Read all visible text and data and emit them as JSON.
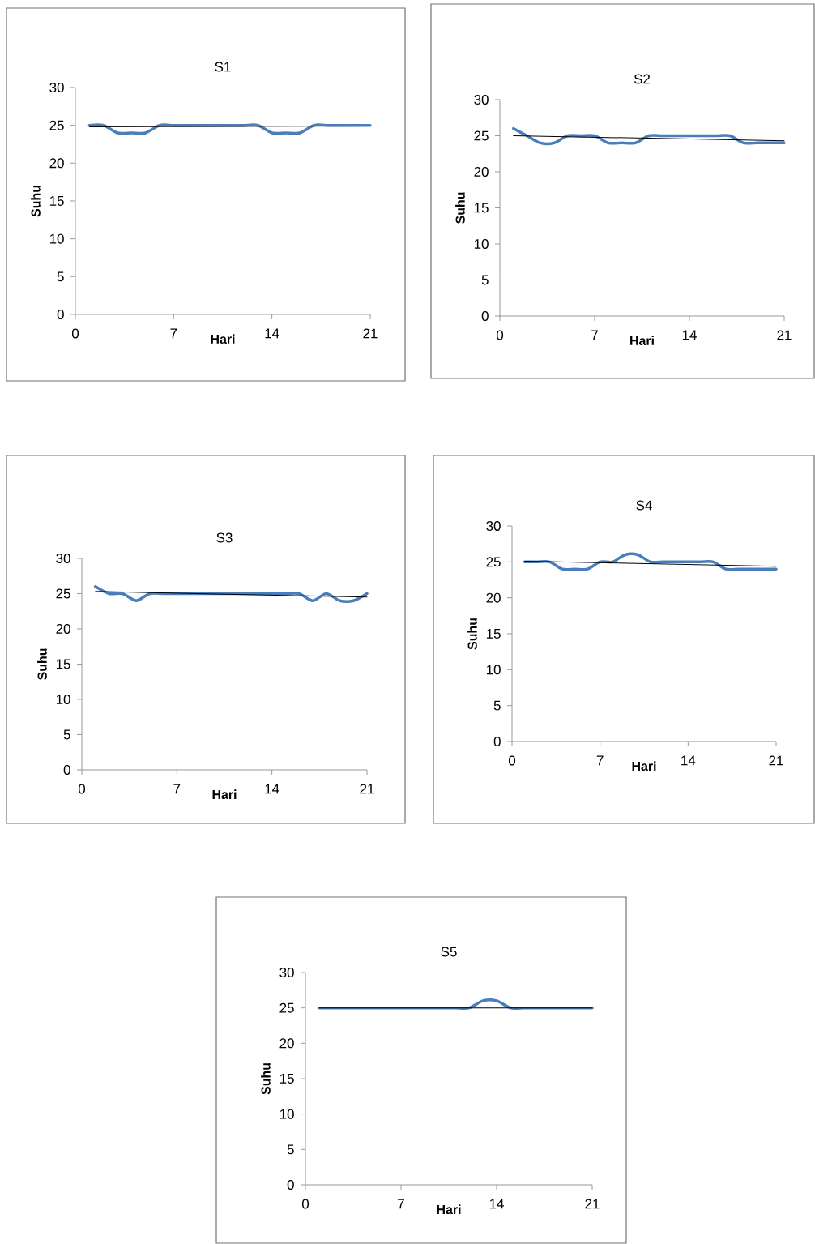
{
  "chart_data": [
    {
      "type": "line",
      "title": "S1",
      "xlabel": "Hari",
      "ylabel": "Suhu",
      "xlim": [
        0,
        21
      ],
      "xticks": [
        0,
        7,
        14,
        21
      ],
      "ylim": [
        0,
        30
      ],
      "yticks": [
        0,
        5,
        10,
        15,
        20,
        25,
        30
      ],
      "series": [
        {
          "color": "#4a7ebb",
          "x": [
            1,
            2,
            3,
            4,
            5,
            6,
            7,
            8,
            9,
            10,
            11,
            12,
            13,
            14,
            15,
            16,
            17,
            18,
            19,
            20,
            21
          ],
          "values": [
            25,
            25,
            24,
            24,
            24,
            25,
            25,
            25,
            25,
            25,
            25,
            25,
            25,
            24,
            24,
            24,
            25,
            25,
            25,
            25,
            25
          ]
        },
        {
          "color": "#000000",
          "x": [
            1,
            21
          ],
          "values": [
            24.8,
            24.9
          ]
        }
      ]
    },
    {
      "type": "line",
      "title": "S2",
      "xlabel": "Hari",
      "ylabel": "Suhu",
      "xlim": [
        0,
        21
      ],
      "xticks": [
        0,
        7,
        14,
        21
      ],
      "ylim": [
        0,
        30
      ],
      "yticks": [
        0,
        5,
        10,
        15,
        20,
        25,
        30
      ],
      "series": [
        {
          "color": "#4a7ebb",
          "x": [
            1,
            2,
            3,
            4,
            5,
            6,
            7,
            8,
            9,
            10,
            11,
            12,
            13,
            14,
            15,
            16,
            17,
            18,
            19,
            20,
            21
          ],
          "values": [
            26,
            25,
            24,
            24,
            25,
            25,
            25,
            24,
            24,
            24,
            25,
            25,
            25,
            25,
            25,
            25,
            25,
            24,
            24,
            24,
            24
          ]
        },
        {
          "color": "#000000",
          "x": [
            1,
            21
          ],
          "values": [
            25.0,
            24.3
          ]
        }
      ]
    },
    {
      "type": "line",
      "title": "S3",
      "xlabel": "Hari",
      "ylabel": "Suhu",
      "xlim": [
        0,
        21
      ],
      "xticks": [
        0,
        7,
        14,
        21
      ],
      "ylim": [
        0,
        30
      ],
      "yticks": [
        0,
        5,
        10,
        15,
        20,
        25,
        30
      ],
      "series": [
        {
          "color": "#4a7ebb",
          "x": [
            1,
            2,
            3,
            4,
            5,
            6,
            7,
            8,
            9,
            10,
            11,
            12,
            13,
            14,
            15,
            16,
            17,
            18,
            19,
            20,
            21
          ],
          "values": [
            26,
            25,
            25,
            24,
            25,
            25,
            25,
            25,
            25,
            25,
            25,
            25,
            25,
            25,
            25,
            25,
            24,
            25,
            24,
            24,
            25
          ]
        },
        {
          "color": "#000000",
          "x": [
            1,
            21
          ],
          "values": [
            25.3,
            24.5
          ]
        }
      ]
    },
    {
      "type": "line",
      "title": "S4",
      "xlabel": "Hari",
      "ylabel": "Suhu",
      "xlim": [
        0,
        21
      ],
      "xticks": [
        0,
        7,
        14,
        21
      ],
      "ylim": [
        0,
        30
      ],
      "yticks": [
        0,
        5,
        10,
        15,
        20,
        25,
        30
      ],
      "series": [
        {
          "color": "#4a7ebb",
          "x": [
            1,
            2,
            3,
            4,
            5,
            6,
            7,
            8,
            9,
            10,
            11,
            12,
            13,
            14,
            15,
            16,
            17,
            18,
            19,
            20,
            21
          ],
          "values": [
            25,
            25,
            25,
            24,
            24,
            24,
            25,
            25,
            26,
            26,
            25,
            25,
            25,
            25,
            25,
            25,
            24,
            24,
            24,
            24,
            24
          ]
        },
        {
          "color": "#000000",
          "x": [
            1,
            21
          ],
          "values": [
            25.1,
            24.4
          ]
        }
      ]
    },
    {
      "type": "line",
      "title": "S5",
      "xlabel": "Hari",
      "ylabel": "Suhu",
      "xlim": [
        0,
        21
      ],
      "xticks": [
        0,
        7,
        14,
        21
      ],
      "ylim": [
        0,
        30
      ],
      "yticks": [
        0,
        5,
        10,
        15,
        20,
        25,
        30
      ],
      "series": [
        {
          "color": "#4a7ebb",
          "x": [
            1,
            2,
            3,
            4,
            5,
            6,
            7,
            8,
            9,
            10,
            11,
            12,
            13,
            14,
            15,
            16,
            17,
            18,
            19,
            20,
            21
          ],
          "values": [
            25,
            25,
            25,
            25,
            25,
            25,
            25,
            25,
            25,
            25,
            25,
            25,
            26,
            26,
            25,
            25,
            25,
            25,
            25,
            25,
            25
          ]
        },
        {
          "color": "#000000",
          "x": [
            1,
            21
          ],
          "values": [
            25.0,
            25.0
          ]
        }
      ]
    }
  ]
}
